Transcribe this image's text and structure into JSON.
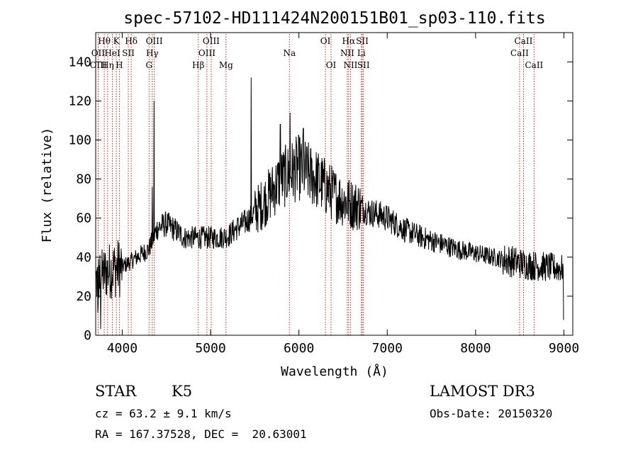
{
  "chart_data": {
    "type": "line",
    "title": "spec-57102-HD111424N200151B01_sp03-110.fits",
    "xlabel": "Wavelength (Å)",
    "ylabel": "Flux (relative)",
    "xlim": [
      3700,
      9100
    ],
    "ylim": [
      0,
      155
    ],
    "xticks": [
      4000,
      5000,
      6000,
      7000,
      8000,
      9000
    ],
    "xtick_labels": [
      "4000",
      "5000",
      "6000",
      "7000",
      "8000",
      "9000"
    ],
    "yticks": [
      0,
      20,
      40,
      60,
      80,
      100,
      120,
      140
    ],
    "ytick_labels": [
      "0",
      "20",
      "40",
      "60",
      "80",
      "100",
      "120",
      "140"
    ],
    "continuum": [
      [
        3700,
        28
      ],
      [
        3800,
        32
      ],
      [
        3900,
        34
      ],
      [
        4000,
        35
      ],
      [
        4100,
        38
      ],
      [
        4200,
        41
      ],
      [
        4300,
        44
      ],
      [
        4400,
        55
      ],
      [
        4500,
        57
      ],
      [
        4600,
        54
      ],
      [
        4700,
        50
      ],
      [
        4800,
        50
      ],
      [
        4900,
        50
      ],
      [
        5000,
        50
      ],
      [
        5100,
        50
      ],
      [
        5200,
        51
      ],
      [
        5300,
        55
      ],
      [
        5400,
        58
      ],
      [
        5500,
        63
      ],
      [
        5600,
        68
      ],
      [
        5700,
        74
      ],
      [
        5800,
        80
      ],
      [
        5900,
        83
      ],
      [
        6000,
        86
      ],
      [
        6100,
        83
      ],
      [
        6200,
        80
      ],
      [
        6300,
        76
      ],
      [
        6400,
        72
      ],
      [
        6500,
        69
      ],
      [
        6600,
        67
      ],
      [
        6700,
        66
      ],
      [
        6800,
        63
      ],
      [
        6900,
        62
      ],
      [
        7000,
        60
      ],
      [
        7100,
        57
      ],
      [
        7200,
        54
      ],
      [
        7400,
        50
      ],
      [
        7600,
        47
      ],
      [
        7800,
        44
      ],
      [
        8000,
        42
      ],
      [
        8200,
        40
      ],
      [
        8400,
        38
      ],
      [
        8600,
        36
      ],
      [
        8800,
        35
      ],
      [
        9000,
        34
      ]
    ],
    "spikes": [
      [
        4340,
        76
      ],
      [
        4361,
        120
      ],
      [
        5460,
        132
      ],
      [
        5790,
        108
      ],
      [
        5900,
        114
      ],
      [
        6050,
        106
      ]
    ],
    "emission_lines": [
      {
        "label": "Hθ",
        "wavelength": 3797,
        "row": 0
      },
      {
        "label": "OII",
        "wavelength": 3727,
        "row": 1
      },
      {
        "label": "OIII",
        "wavelength": 3729,
        "row": 2
      },
      {
        "label": "Hη",
        "wavelength": 3835,
        "row": 2
      },
      {
        "label": "K",
        "wavelength": 3934,
        "row": 0
      },
      {
        "label": "HeI",
        "wavelength": 3889,
        "row": 1
      },
      {
        "label": "H",
        "wavelength": 3968,
        "row": 2
      },
      {
        "label": "Hδ",
        "wavelength": 4102,
        "row": 0
      },
      {
        "label": "SII",
        "wavelength": 4069,
        "row": 1
      },
      {
        "label": "OIII",
        "wavelength": 4363,
        "row": 0
      },
      {
        "label": "Hγ",
        "wavelength": 4340,
        "row": 1
      },
      {
        "label": "G",
        "wavelength": 4304,
        "row": 2
      },
      {
        "label": "OIII",
        "wavelength": 5007,
        "row": 0
      },
      {
        "label": "OIII",
        "wavelength": 4959,
        "row": 1
      },
      {
        "label": "Hβ",
        "wavelength": 4861,
        "row": 2
      },
      {
        "label": "Mg",
        "wavelength": 5175,
        "row": 2
      },
      {
        "label": "Na",
        "wavelength": 5893,
        "row": 1
      },
      {
        "label": "OI",
        "wavelength": 6300,
        "row": 0
      },
      {
        "label": "OI",
        "wavelength": 6364,
        "row": 2
      },
      {
        "label": "Hα",
        "wavelength": 6563,
        "row": 0
      },
      {
        "label": "NII",
        "wavelength": 6548,
        "row": 1
      },
      {
        "label": "NII",
        "wavelength": 6584,
        "row": 2
      },
      {
        "label": "SII",
        "wavelength": 6717,
        "row": 0
      },
      {
        "label": "Li",
        "wavelength": 6707,
        "row": 1
      },
      {
        "label": "SII",
        "wavelength": 6731,
        "row": 2
      },
      {
        "label": "CaII",
        "wavelength": 8542,
        "row": 0
      },
      {
        "label": "CaII",
        "wavelength": 8498,
        "row": 1
      },
      {
        "label": "CaII",
        "wavelength": 8662,
        "row": 2
      }
    ]
  },
  "info": {
    "class": "STAR",
    "subclass": "K5",
    "survey": "LAMOST DR3",
    "redshift": "cz = 63.2 ± 9.1 km/s",
    "obs_date": "Obs-Date: 20150320",
    "coords": "RA = 167.37528, DEC =  20.63001"
  },
  "colors": {
    "line": "#000000",
    "marker": "#cc2222"
  }
}
